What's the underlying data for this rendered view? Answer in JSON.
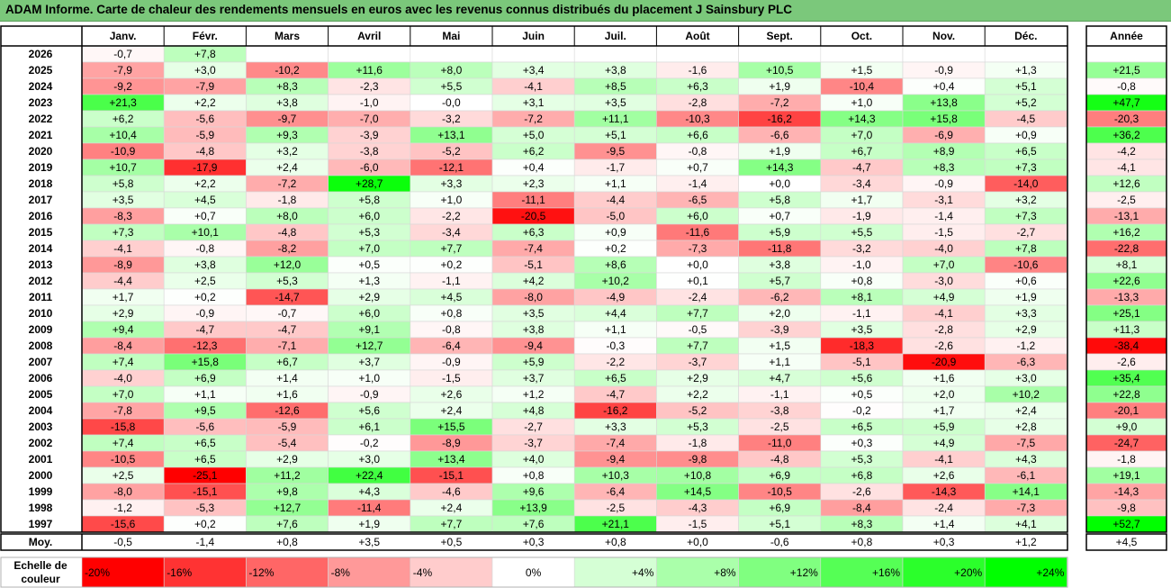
{
  "title": "ADAM Informe. Carte de chaleur des rendements mensuels en euros avec les revenus connus distribués du placement J Sainsbury PLC",
  "colors": {
    "negative_max": "#ff0000",
    "neutral": "#ffffff",
    "positive_max": "#00ff00",
    "title_bg": "#7bc87b"
  },
  "chart_data": {
    "type": "heatmap",
    "months": [
      "Janv.",
      "Févr.",
      "Mars",
      "Avril",
      "Mai",
      "Juin",
      "Juil.",
      "Août",
      "Sept.",
      "Oct.",
      "Nov.",
      "Déc."
    ],
    "annual_label": "Année",
    "average_label": "Moy.",
    "rows": [
      {
        "year": "2026",
        "values": [
          "-0,7",
          "+7,8",
          "",
          "",
          "",
          "",
          "",
          "",
          "",
          "",
          "",
          ""
        ],
        "annual": ""
      },
      {
        "year": "2025",
        "values": [
          "-7,9",
          "+3,0",
          "-10,2",
          "+11,6",
          "+8,0",
          "+3,4",
          "+3,8",
          "-1,6",
          "+10,5",
          "+1,5",
          "-0,9",
          "+1,3"
        ],
        "annual": "+21,5"
      },
      {
        "year": "2024",
        "values": [
          "-9,2",
          "-7,9",
          "+8,3",
          "-2,3",
          "+5,5",
          "-4,1",
          "+8,5",
          "+6,3",
          "+1,9",
          "-10,4",
          "+0,4",
          "+5,1"
        ],
        "annual": "-0,8"
      },
      {
        "year": "2023",
        "values": [
          "+21,3",
          "+2,2",
          "+3,8",
          "-1,0",
          "-0,0",
          "+3,1",
          "+3,5",
          "-2,8",
          "-7,2",
          "+1,0",
          "+13,8",
          "+5,2"
        ],
        "annual": "+47,7"
      },
      {
        "year": "2022",
        "values": [
          "+6,2",
          "-5,6",
          "-9,7",
          "-7,0",
          "-3,2",
          "-7,2",
          "+11,1",
          "-10,3",
          "-16,2",
          "+14,3",
          "+15,8",
          "-4,5"
        ],
        "annual": "-20,3"
      },
      {
        "year": "2021",
        "values": [
          "+10,4",
          "-5,9",
          "+9,3",
          "-3,9",
          "+13,1",
          "+5,0",
          "+5,1",
          "+6,6",
          "-6,6",
          "+7,0",
          "-6,9",
          "+0,9"
        ],
        "annual": "+36,2"
      },
      {
        "year": "2020",
        "values": [
          "-10,9",
          "-4,8",
          "+3,2",
          "-3,8",
          "-5,2",
          "+6,2",
          "-9,5",
          "-0,8",
          "+1,9",
          "+6,7",
          "+8,9",
          "+6,5"
        ],
        "annual": "-4,2"
      },
      {
        "year": "2019",
        "values": [
          "+10,7",
          "-17,9",
          "+2,4",
          "-6,0",
          "-12,1",
          "+0,4",
          "-1,7",
          "+0,7",
          "+14,3",
          "-4,7",
          "+8,3",
          "+7,3"
        ],
        "annual": "-4,1"
      },
      {
        "year": "2018",
        "values": [
          "+5,8",
          "+2,2",
          "-7,2",
          "+28,7",
          "+3,3",
          "+2,3",
          "+1,1",
          "-1,4",
          "+0,0",
          "-3,4",
          "-0,9",
          "-14,0"
        ],
        "annual": "+12,6"
      },
      {
        "year": "2017",
        "values": [
          "+3,5",
          "+4,5",
          "-1,8",
          "+5,8",
          "+1,0",
          "-11,1",
          "-4,4",
          "-6,5",
          "+5,8",
          "+1,7",
          "-3,1",
          "+3,2"
        ],
        "annual": "-2,5"
      },
      {
        "year": "2016",
        "values": [
          "-8,3",
          "+0,7",
          "+8,0",
          "+6,0",
          "-2,2",
          "-20,5",
          "-5,0",
          "+6,0",
          "+0,7",
          "-1,9",
          "-1,4",
          "+7,3"
        ],
        "annual": "-13,1"
      },
      {
        "year": "2015",
        "values": [
          "+7,3",
          "+10,1",
          "-4,8",
          "+5,3",
          "-3,4",
          "+6,3",
          "+0,9",
          "-11,6",
          "+5,9",
          "+5,5",
          "-1,5",
          "-2,7"
        ],
        "annual": "+16,2"
      },
      {
        "year": "2014",
        "values": [
          "-4,1",
          "-0,8",
          "-8,2",
          "+7,0",
          "+7,7",
          "-7,4",
          "+0,2",
          "-7,3",
          "-11,8",
          "-3,2",
          "-4,0",
          "+7,8"
        ],
        "annual": "-22,8"
      },
      {
        "year": "2013",
        "values": [
          "-8,9",
          "+3,8",
          "+12,0",
          "+0,5",
          "+0,2",
          "-5,1",
          "+8,6",
          "+0,0",
          "+3,8",
          "-1,0",
          "+7,0",
          "-10,6"
        ],
        "annual": "+8,1"
      },
      {
        "year": "2012",
        "values": [
          "-4,4",
          "+2,5",
          "+5,3",
          "+1,3",
          "-1,1",
          "+4,2",
          "+10,2",
          "+0,1",
          "+5,7",
          "+0,8",
          "-3,0",
          "+0,6"
        ],
        "annual": "+22,6"
      },
      {
        "year": "2011",
        "values": [
          "+1,7",
          "+0,2",
          "-14,7",
          "+2,9",
          "+4,5",
          "-8,0",
          "-4,9",
          "-2,4",
          "-6,2",
          "+8,1",
          "+4,9",
          "+1,9"
        ],
        "annual": "-13,3"
      },
      {
        "year": "2010",
        "values": [
          "+2,9",
          "-0,9",
          "-0,7",
          "+6,0",
          "+0,8",
          "+3,5",
          "+4,4",
          "+7,7",
          "+2,0",
          "-1,1",
          "-4,1",
          "+3,3"
        ],
        "annual": "+25,1"
      },
      {
        "year": "2009",
        "values": [
          "+9,4",
          "-4,7",
          "-4,7",
          "+9,1",
          "-0,8",
          "+3,8",
          "+1,1",
          "-0,5",
          "-3,9",
          "+3,5",
          "-2,8",
          "+2,9"
        ],
        "annual": "+11,3"
      },
      {
        "year": "2008",
        "values": [
          "-8,4",
          "-12,3",
          "-7,1",
          "+12,7",
          "-6,4",
          "-9,4",
          "-0,3",
          "+7,7",
          "+1,5",
          "-18,3",
          "-2,6",
          "-1,2"
        ],
        "annual": "-38,4"
      },
      {
        "year": "2007",
        "values": [
          "+7,4",
          "+15,8",
          "+6,7",
          "+3,7",
          "-0,9",
          "+5,9",
          "-2,2",
          "-3,7",
          "+1,1",
          "-5,1",
          "-20,9",
          "-6,3"
        ],
        "annual": "-2,6"
      },
      {
        "year": "2006",
        "values": [
          "-4,0",
          "+6,9",
          "+1,4",
          "+1,0",
          "-1,5",
          "+3,7",
          "+6,5",
          "+2,9",
          "+4,7",
          "+5,6",
          "+1,6",
          "+3,0"
        ],
        "annual": "+35,4"
      },
      {
        "year": "2005",
        "values": [
          "+7,0",
          "+1,1",
          "+1,6",
          "-0,9",
          "+2,6",
          "+1,2",
          "-4,7",
          "+2,2",
          "-1,1",
          "+0,5",
          "+2,0",
          "+10,2"
        ],
        "annual": "+22,8"
      },
      {
        "year": "2004",
        "values": [
          "-7,8",
          "+9,5",
          "-12,6",
          "+5,6",
          "+2,4",
          "+4,8",
          "-16,2",
          "-5,2",
          "-3,8",
          "-0,2",
          "+1,7",
          "+2,4"
        ],
        "annual": "-20,1"
      },
      {
        "year": "2003",
        "values": [
          "-15,8",
          "-5,6",
          "-5,9",
          "+6,1",
          "+15,5",
          "-2,7",
          "+3,3",
          "+5,3",
          "-2,5",
          "+6,5",
          "+5,9",
          "+2,8"
        ],
        "annual": "+9,0"
      },
      {
        "year": "2002",
        "values": [
          "+7,4",
          "+6,5",
          "-5,4",
          "-0,2",
          "-8,9",
          "-3,7",
          "-7,4",
          "-1,8",
          "-11,0",
          "+0,3",
          "+4,9",
          "-7,5"
        ],
        "annual": "-24,7"
      },
      {
        "year": "2001",
        "values": [
          "-10,5",
          "+6,5",
          "+2,9",
          "+3,0",
          "+13,4",
          "+4,0",
          "-9,4",
          "-9,8",
          "-4,8",
          "+5,3",
          "-4,1",
          "+4,3"
        ],
        "annual": "-1,8"
      },
      {
        "year": "2000",
        "values": [
          "+2,5",
          "-25,1",
          "+11,2",
          "+22,4",
          "-15,1",
          "+0,8",
          "+10,3",
          "+10,8",
          "+6,9",
          "+6,8",
          "+2,6",
          "-6,1"
        ],
        "annual": "+19,1"
      },
      {
        "year": "1999",
        "values": [
          "-8,0",
          "-15,1",
          "+9,8",
          "+4,3",
          "-4,6",
          "+9,6",
          "-6,4",
          "+14,5",
          "-10,5",
          "-2,6",
          "-14,3",
          "+14,1"
        ],
        "annual": "-14,3"
      },
      {
        "year": "1998",
        "values": [
          "-1,2",
          "-5,3",
          "+12,7",
          "-11,4",
          "+2,4",
          "+13,9",
          "-2,5",
          "-4,3",
          "+6,9",
          "-8,4",
          "-2,4",
          "-7,3"
        ],
        "annual": "-9,8"
      },
      {
        "year": "1997",
        "values": [
          "-15,6",
          "+0,2",
          "+7,6",
          "+1,9",
          "+7,7",
          "+7,6",
          "+21,1",
          "-1,5",
          "+5,1",
          "+8,3",
          "+1,4",
          "+4,1"
        ],
        "annual": "+52,7"
      }
    ],
    "averages": [
      "-0,5",
      "-1,4",
      "+0,8",
      "+3,5",
      "+0,5",
      "+0,3",
      "+0,8",
      "+0,0",
      "-0,6",
      "+0,8",
      "+0,3",
      "+1,2"
    ],
    "average_annual": "+4,5",
    "scale_label_line1": "Echelle de",
    "scale_label_line2": "couleur",
    "scale_steps": [
      {
        "label": "-20%",
        "value": -20
      },
      {
        "label": "-16%",
        "value": -16
      },
      {
        "label": "-12%",
        "value": -12
      },
      {
        "label": "-8%",
        "value": -8
      },
      {
        "label": "-4%",
        "value": -4
      },
      {
        "label": "0%",
        "value": 0
      },
      {
        "label": "+4%",
        "value": 4
      },
      {
        "label": "+8%",
        "value": 8
      },
      {
        "label": "+12%",
        "value": 12
      },
      {
        "label": "+16%",
        "value": 16
      },
      {
        "label": "+20%",
        "value": 20
      },
      {
        "label": "+24%",
        "value": 24
      }
    ]
  }
}
